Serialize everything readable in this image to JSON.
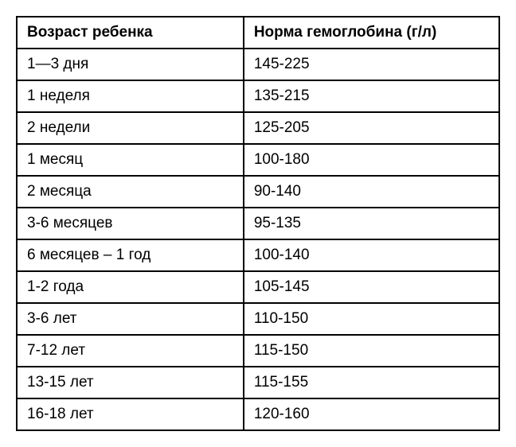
{
  "hemoglobin_table": {
    "type": "table",
    "columns": [
      {
        "key": "age",
        "label": "Возраст ребенка",
        "width": "47%",
        "align": "left"
      },
      {
        "key": "norm",
        "label": "Норма гемоглобина (г/л)",
        "width": "53%",
        "align": "left"
      }
    ],
    "rows": [
      {
        "age": "1—3 дня",
        "norm": "145-225"
      },
      {
        "age": "1 неделя",
        "norm": "135-215"
      },
      {
        "age": "2 недели",
        "norm": "125-205"
      },
      {
        "age": "1 месяц",
        "norm": "100-180"
      },
      {
        "age": "2 месяца",
        "norm": "90-140"
      },
      {
        "age": "3-6 месяцев",
        "norm": "95-135"
      },
      {
        "age": "6 месяцев – 1 год",
        "norm": "100-140"
      },
      {
        "age": "1-2 года",
        "norm": "105-145"
      },
      {
        "age": "3-6 лет",
        "norm": "110-150"
      },
      {
        "age": "7-12 лет",
        "norm": "115-150"
      },
      {
        "age": "13-15 лет",
        "norm": "115-155"
      },
      {
        "age": "16-18 лет",
        "norm": "120-160"
      }
    ],
    "border_color": "#000000",
    "border_width": 2,
    "background_color": "#ffffff",
    "header_fontsize": 19,
    "header_fontweight": "bold",
    "cell_fontsize": 19,
    "text_color": "#000000",
    "font_family": "Verdana, Geneva, sans-serif",
    "cell_padding": "8px 12px"
  }
}
